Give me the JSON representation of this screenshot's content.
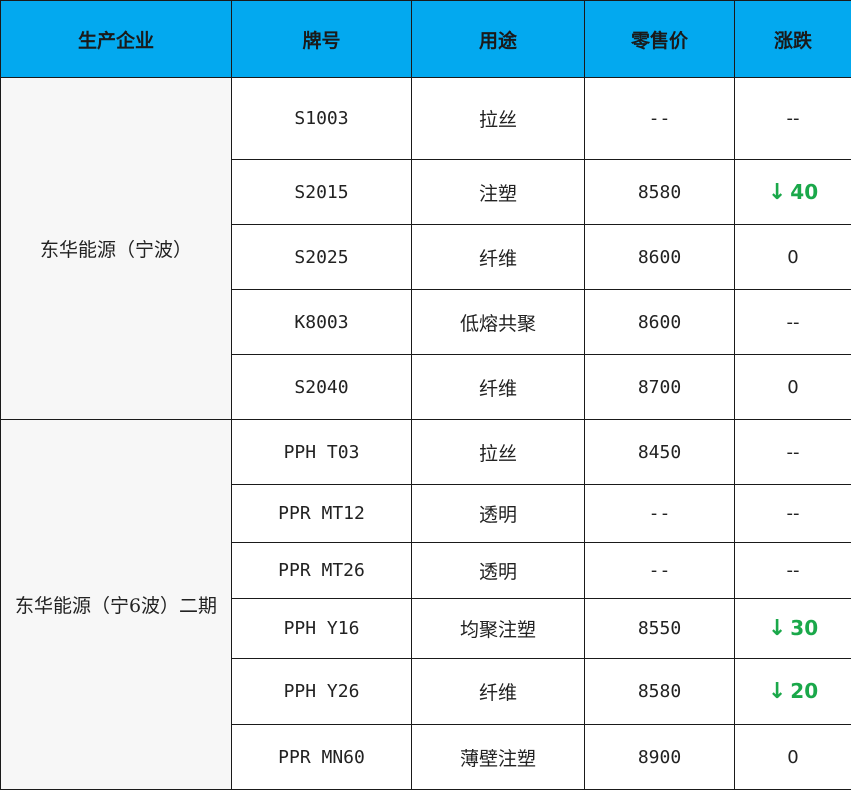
{
  "headers": [
    "生产企业",
    "牌号",
    "用途",
    "零售价",
    "涨跌"
  ],
  "groups": [
    {
      "company": "东华能源（宁波）",
      "rows": [
        {
          "code": "S1003",
          "use": "拉丝",
          "price": "--",
          "change": "--",
          "dir": ""
        },
        {
          "code": "S2015",
          "use": "注塑",
          "price": "8580",
          "change": "40",
          "dir": "down"
        },
        {
          "code": "S2025",
          "use": "纤维",
          "price": "8600",
          "change": "0",
          "dir": ""
        },
        {
          "code": "K8003",
          "use": "低熔共聚",
          "price": "8600",
          "change": "--",
          "dir": ""
        },
        {
          "code": "S2040",
          "use": "纤维",
          "price": "8700",
          "change": "0",
          "dir": ""
        }
      ]
    },
    {
      "company": "东华能源（宁6波）二期",
      "rows": [
        {
          "code": "PPH T03",
          "use": "拉丝",
          "price": "8450",
          "change": "--",
          "dir": ""
        },
        {
          "code": "PPR MT12",
          "use": "透明",
          "price": "--",
          "change": "--",
          "dir": ""
        },
        {
          "code": "PPR MT26",
          "use": "透明",
          "price": "--",
          "change": "--",
          "dir": ""
        },
        {
          "code": "PPH Y16",
          "use": "均聚注塑",
          "price": "8550",
          "change": "30",
          "dir": "down"
        },
        {
          "code": "PPH Y26",
          "use": "纤维",
          "price": "8580",
          "change": "20",
          "dir": "down"
        },
        {
          "code": "PPR MN60",
          "use": "薄壁注塑",
          "price": "8900",
          "change": "0",
          "dir": ""
        }
      ]
    }
  ],
  "colors": {
    "header_bg": "#03a9ef",
    "down": "#1aa84a"
  },
  "icons": {
    "down": "down-arrow-icon"
  }
}
